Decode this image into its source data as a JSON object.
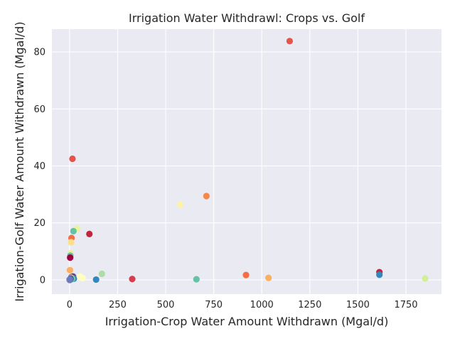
{
  "chart_data": {
    "type": "scatter",
    "title": "Irrigation Water Withdrawl: Crops vs. Golf",
    "xlabel": "Irrigation-Crop Water Amount Withdrawn (Mgal/d)",
    "ylabel": "Irrigation-Golf Water Amount Withdrawn (Mgal/d)",
    "xlim": [
      -92,
      1935
    ],
    "ylim": [
      -5,
      88
    ],
    "xticks": [
      0,
      250,
      500,
      750,
      1000,
      1250,
      1500,
      1750
    ],
    "yticks": [
      0,
      20,
      40,
      60,
      80
    ],
    "grid": true,
    "background": "#eaeaf2",
    "points": [
      {
        "x": 1145,
        "y": 83.8,
        "color": "#e5534b"
      },
      {
        "x": 15,
        "y": 42.5,
        "color": "#e5534b"
      },
      {
        "x": 712,
        "y": 29.4,
        "color": "#f4874a"
      },
      {
        "x": 575,
        "y": 26.4,
        "color": "#fdf3a6"
      },
      {
        "x": 38,
        "y": 17.9,
        "color": "#e6f598"
      },
      {
        "x": 20,
        "y": 17.1,
        "color": "#66c2a5"
      },
      {
        "x": 103,
        "y": 16.1,
        "color": "#c2263f"
      },
      {
        "x": 10,
        "y": 14.7,
        "color": "#f46d43"
      },
      {
        "x": 8,
        "y": 13.2,
        "color": "#fee08b"
      },
      {
        "x": 5,
        "y": 9.3,
        "color": "#e6f598"
      },
      {
        "x": 4,
        "y": 8.5,
        "color": "#66c2a5"
      },
      {
        "x": 3,
        "y": 7.8,
        "color": "#9e0142"
      },
      {
        "x": 2,
        "y": 3.4,
        "color": "#fdae61"
      },
      {
        "x": 1612,
        "y": 2.7,
        "color": "#c2263f"
      },
      {
        "x": 168,
        "y": 2.1,
        "color": "#abdda4"
      },
      {
        "x": 1612,
        "y": 1.8,
        "color": "#3288bd"
      },
      {
        "x": 918,
        "y": 1.7,
        "color": "#f46d43"
      },
      {
        "x": 55,
        "y": 1.2,
        "color": "#ffffbf"
      },
      {
        "x": 18,
        "y": 1.2,
        "color": "#5e4fa2"
      },
      {
        "x": 10,
        "y": 1.0,
        "color": "#9e0142"
      },
      {
        "x": 1035,
        "y": 0.7,
        "color": "#fdae61"
      },
      {
        "x": 68,
        "y": 0.6,
        "color": "#ffffbf"
      },
      {
        "x": 1850,
        "y": 0.5,
        "color": "#d3ee97"
      },
      {
        "x": 326,
        "y": 0.3,
        "color": "#d53e4f"
      },
      {
        "x": 660,
        "y": 0.2,
        "color": "#66c2a5"
      },
      {
        "x": 138,
        "y": 0.1,
        "color": "#3288bd"
      },
      {
        "x": 22,
        "y": 0.4,
        "color": "#3288bd"
      },
      {
        "x": 14,
        "y": 0.3,
        "color": "#66c2a5"
      },
      {
        "x": 9,
        "y": 0.8,
        "color": "#abdda4"
      },
      {
        "x": 6,
        "y": 0.5,
        "color": "#5e4fa2"
      },
      {
        "x": 3,
        "y": 0.2,
        "color": "#3288bd"
      },
      {
        "x": 1,
        "y": 0.0,
        "color": "#5e4fa2"
      },
      {
        "x": 0,
        "y": 0.1,
        "color": "#6c7bbf"
      }
    ]
  }
}
